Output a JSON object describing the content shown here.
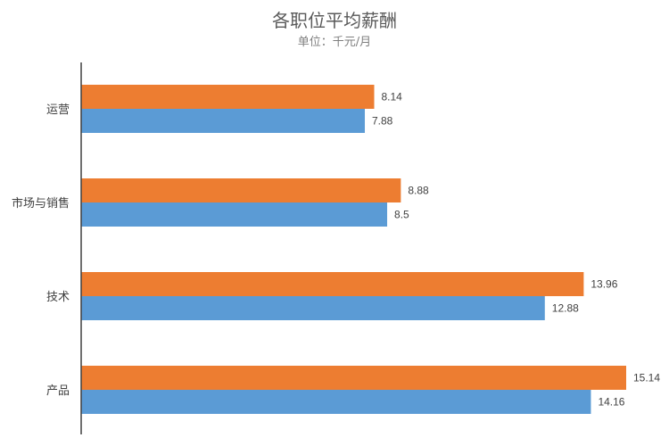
{
  "chart_data": {
    "type": "bar",
    "orientation": "horizontal",
    "title": "各职位平均薪酬",
    "subtitle": "单位：千元/月",
    "categories": [
      "运营",
      "市场与销售",
      "技术",
      "产品"
    ],
    "series": [
      {
        "values": [
          8.14,
          8.88,
          13.96,
          15.14
        ],
        "color": "#ED7D31"
      },
      {
        "values": [
          7.88,
          8.5,
          12.88,
          14.16
        ],
        "color": "#5B9BD5"
      }
    ],
    "xlim": [
      0,
      15.14
    ],
    "grid": false,
    "legend": "none",
    "data_labels": true
  }
}
